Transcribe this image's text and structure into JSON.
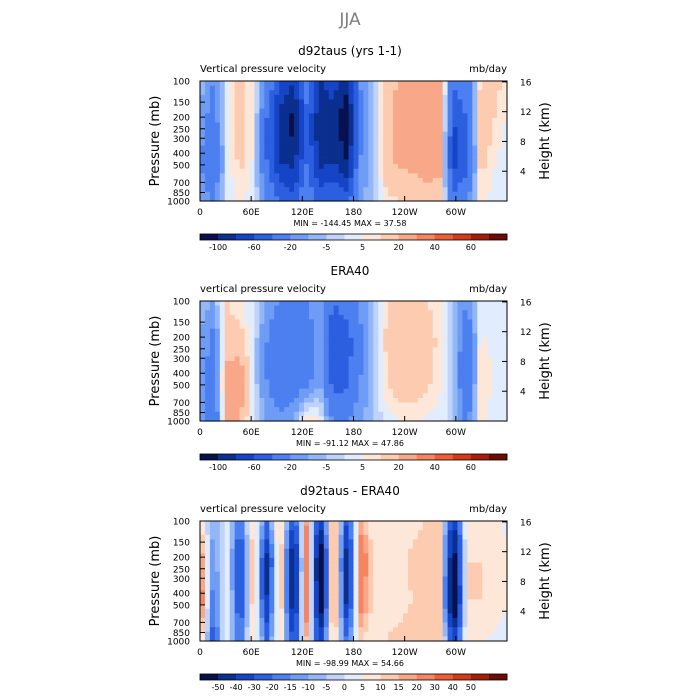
{
  "figure": {
    "title": "JJA"
  },
  "chart_data": [
    {
      "type": "heatmap",
      "title": "d92taus (yrs 1-1)",
      "subtitle_left": "Vertical pressure velocity",
      "units": "mb/day",
      "ylabel_left": "Pressure (mb)",
      "ylabel_right": "Height (km)",
      "x_ticks": [
        "0",
        "60E",
        "120E",
        "180",
        "120W",
        "60W"
      ],
      "x_range": [
        0,
        360
      ],
      "p_ticks": [
        "100",
        "150",
        "200",
        "250",
        "300",
        "400",
        "500",
        "700",
        "850",
        "1000"
      ],
      "p_range": [
        100,
        1000
      ],
      "height_ticks": [
        "4",
        "8",
        "12",
        "16"
      ],
      "stats": "MIN = -144.45   MAX =  37.58",
      "min": -144.45,
      "max": 37.58,
      "colorbar": {
        "labels": [
          "-100",
          "-60",
          "-20",
          "-5",
          "5",
          "20",
          "40",
          "60"
        ],
        "levels": [
          -120,
          -100,
          -80,
          -60,
          -40,
          -20,
          -10,
          -5,
          0,
          5,
          10,
          20,
          30,
          40,
          50,
          60,
          70
        ],
        "colors": [
          "#08104e",
          "#0a2f8f",
          "#1545c6",
          "#2c5fe0",
          "#4c7ff0",
          "#6f9cf5",
          "#94b7f8",
          "#bfd3fb",
          "#e1ecfd",
          "#fde7d8",
          "#fccbb0",
          "#f8a888",
          "#f58460",
          "#ee5d33",
          "#d43a17",
          "#a51e0a",
          "#6d0c04"
        ]
      },
      "pattern": [
        [
          -5,
          -20,
          2,
          14,
          6,
          -20,
          -60,
          -80,
          -30,
          -80,
          -70,
          -90,
          -20,
          -5,
          15,
          22,
          22,
          26,
          24,
          -35,
          -30,
          10,
          15,
          6
        ],
        [
          -10,
          -30,
          4,
          14,
          6,
          -40,
          -90,
          -110,
          -45,
          -100,
          -90,
          -120,
          -25,
          -5,
          18,
          24,
          26,
          30,
          28,
          -60,
          -40,
          18,
          10,
          4
        ],
        [
          -20,
          -40,
          2,
          12,
          4,
          -40,
          -80,
          -90,
          -40,
          -90,
          -80,
          -100,
          -20,
          -5,
          18,
          22,
          24,
          28,
          26,
          -70,
          -50,
          14,
          6,
          2
        ],
        [
          -10,
          -20,
          2,
          6,
          2,
          -20,
          -40,
          -50,
          -20,
          -45,
          -40,
          -50,
          -10,
          -5,
          8,
          10,
          12,
          12,
          12,
          -30,
          -20,
          6,
          3,
          0
        ]
      ]
    },
    {
      "type": "heatmap",
      "title": "ERA40",
      "subtitle_left": "vertical pressure velocity",
      "units": "mb/day",
      "ylabel_left": "Pressure (mb)",
      "ylabel_right": "Height (km)",
      "x_ticks": [
        "0",
        "60E",
        "120E",
        "180",
        "120W",
        "60W"
      ],
      "x_range": [
        0,
        360
      ],
      "p_ticks": [
        "100",
        "150",
        "200",
        "250",
        "300",
        "400",
        "500",
        "700",
        "850",
        "1000"
      ],
      "p_range": [
        100,
        1000
      ],
      "height_ticks": [
        "4",
        "8",
        "12",
        "16"
      ],
      "stats": "MIN = -91.12   MAX =  47.86",
      "min": -91.12,
      "max": 47.86,
      "colorbar": {
        "labels": [
          "-100",
          "-60",
          "-20",
          "-5",
          "5",
          "20",
          "40",
          "60"
        ],
        "levels": [
          -120,
          -100,
          -80,
          -60,
          -40,
          -20,
          -10,
          -5,
          0,
          5,
          10,
          20,
          30,
          40,
          50,
          60,
          70
        ],
        "colors": [
          "#08104e",
          "#0a2f8f",
          "#1545c6",
          "#2c5fe0",
          "#4c7ff0",
          "#6f9cf5",
          "#94b7f8",
          "#bfd3fb",
          "#e1ecfd",
          "#fde7d8",
          "#fccbb0",
          "#f8a888",
          "#f58460",
          "#ee5d33",
          "#d43a17",
          "#a51e0a",
          "#6d0c04"
        ]
      },
      "pattern": [
        [
          -5,
          -10,
          10,
          6,
          0,
          -10,
          -20,
          -25,
          -20,
          -10,
          -40,
          -30,
          -15,
          -5,
          10,
          14,
          12,
          10,
          6,
          -5,
          -20,
          2,
          3,
          2
        ],
        [
          -10,
          -25,
          14,
          14,
          0,
          -20,
          -40,
          -40,
          -30,
          -15,
          -55,
          -50,
          -25,
          -5,
          12,
          18,
          18,
          14,
          8,
          -5,
          -35,
          6,
          4,
          3
        ],
        [
          -15,
          -30,
          25,
          30,
          0,
          -20,
          -35,
          -30,
          -25,
          -10,
          -50,
          -45,
          -20,
          -5,
          10,
          16,
          16,
          12,
          6,
          -5,
          -40,
          10,
          4,
          2
        ],
        [
          -10,
          -40,
          20,
          20,
          0,
          -10,
          -15,
          -10,
          10,
          5,
          -20,
          -20,
          -10,
          -5,
          3,
          5,
          5,
          4,
          3,
          -5,
          -25,
          8,
          2,
          0
        ]
      ]
    },
    {
      "type": "heatmap",
      "title": "d92taus - ERA40",
      "subtitle_left": "vertical pressure velocity",
      "units": "mb/day",
      "ylabel_left": "Pressure (mb)",
      "ylabel_right": "Height (km)",
      "x_ticks": [
        "0",
        "60E",
        "120E",
        "180",
        "120W",
        "60W"
      ],
      "x_range": [
        0,
        360
      ],
      "p_ticks": [
        "100",
        "150",
        "200",
        "250",
        "300",
        "400",
        "500",
        "700",
        "850",
        "1000"
      ],
      "p_range": [
        100,
        1000
      ],
      "height_ticks": [
        "4",
        "8",
        "12",
        "16"
      ],
      "stats": "MIN = -98.99   MAX =  54.66",
      "min": -98.99,
      "max": 54.66,
      "colorbar": {
        "labels": [
          "-50",
          "-40",
          "-30",
          "-20",
          "-15",
          "-10",
          "-5",
          "0",
          "5",
          "10",
          "15",
          "20",
          "30",
          "40",
          "50"
        ],
        "levels": [
          -60,
          -50,
          -40,
          -30,
          -20,
          -15,
          -10,
          -5,
          0,
          5,
          10,
          15,
          20,
          30,
          40,
          50,
          60
        ],
        "colors": [
          "#08104e",
          "#0a2f8f",
          "#1545c6",
          "#2c5fe0",
          "#4c7ff0",
          "#6f9cf5",
          "#94b7f8",
          "#bfd3fb",
          "#e1ecfd",
          "#fde7d8",
          "#fccbb0",
          "#f8a888",
          "#f58460",
          "#ee5d33",
          "#d43a17",
          "#a51e0a",
          "#6d0c04"
        ]
      },
      "pattern": [
        [
          10,
          -10,
          2,
          -20,
          10,
          -20,
          15,
          -30,
          20,
          -40,
          25,
          -30,
          15,
          5,
          8,
          6,
          8,
          10,
          10,
          -40,
          8,
          8,
          6,
          4
        ],
        [
          25,
          -15,
          5,
          -35,
          20,
          -45,
          20,
          -60,
          30,
          -70,
          30,
          -50,
          30,
          10,
          10,
          8,
          12,
          15,
          14,
          -60,
          10,
          10,
          8,
          6
        ],
        [
          30,
          -20,
          5,
          -30,
          15,
          -40,
          20,
          -55,
          30,
          -65,
          30,
          -45,
          25,
          8,
          8,
          8,
          10,
          12,
          12,
          -70,
          10,
          10,
          8,
          6
        ],
        [
          15,
          -25,
          5,
          -20,
          10,
          -20,
          10,
          -30,
          15,
          -35,
          15,
          -20,
          10,
          5,
          10,
          12,
          15,
          15,
          15,
          -35,
          8,
          6,
          4,
          2
        ]
      ]
    }
  ]
}
